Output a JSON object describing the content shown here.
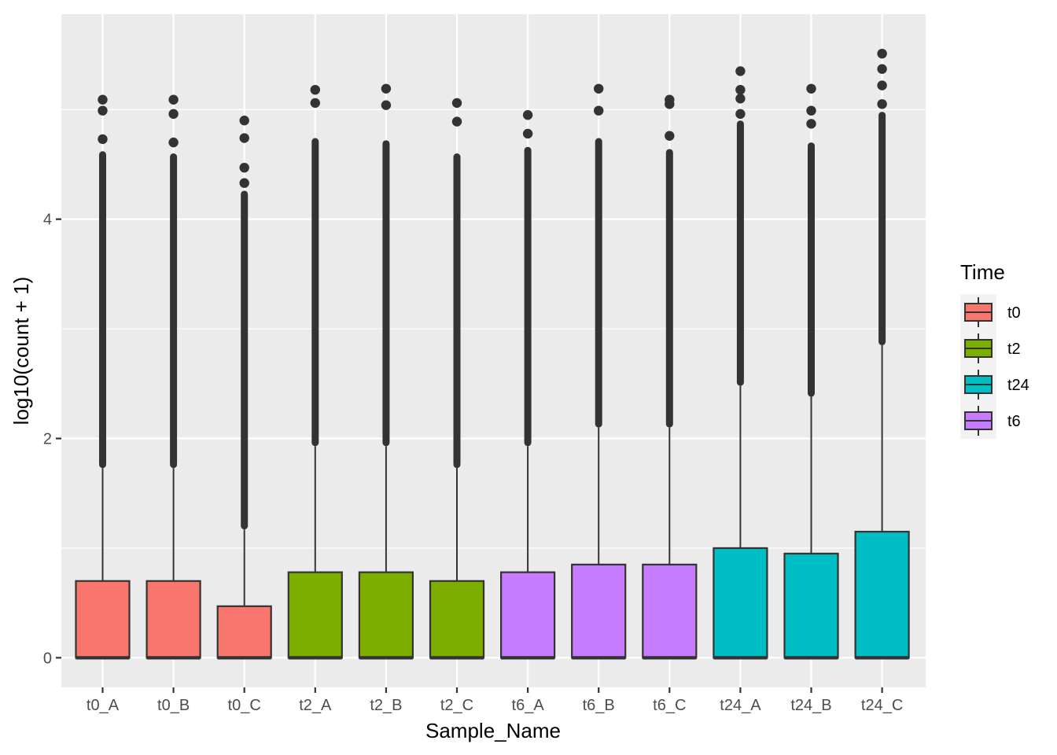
{
  "chart_data": {
    "type": "box",
    "xlabel": "Sample_Name",
    "ylabel": "log10(count + 1)",
    "ylim": [
      -0.27,
      5.87
    ],
    "yticks": [
      0,
      2,
      4
    ],
    "ytick_labels": [
      "0",
      "2",
      "4"
    ],
    "grid": true,
    "legend": {
      "title": "Time",
      "position": "right",
      "entries": [
        {
          "label": "t0",
          "color": "#F8766D"
        },
        {
          "label": "t2",
          "color": "#7CAE00"
        },
        {
          "label": "t24",
          "color": "#00BFC4"
        },
        {
          "label": "t6",
          "color": "#C77CFF"
        }
      ]
    },
    "categories": [
      "t0_A",
      "t0_B",
      "t0_C",
      "t2_A",
      "t2_B",
      "t2_C",
      "t6_A",
      "t6_B",
      "t6_C",
      "t24_A",
      "t24_B",
      "t24_C"
    ],
    "boxes": [
      {
        "name": "t0_A",
        "group": "t0",
        "min": 0,
        "q1": 0,
        "median": 0,
        "q3": 0.7,
        "whisker_high": 1.73,
        "dense_outliers_top": 4.62,
        "outliers": [
          4.73,
          4.99,
          5.09
        ]
      },
      {
        "name": "t0_B",
        "group": "t0",
        "min": 0,
        "q1": 0,
        "median": 0,
        "q3": 0.7,
        "whisker_high": 1.73,
        "dense_outliers_top": 4.6,
        "outliers": [
          4.7,
          4.96,
          5.09
        ]
      },
      {
        "name": "t0_C",
        "group": "t0",
        "min": 0,
        "q1": 0,
        "median": 0,
        "q3": 0.47,
        "whisker_high": 1.17,
        "dense_outliers_top": 4.26,
        "outliers": [
          4.33,
          4.47,
          4.74,
          4.9
        ]
      },
      {
        "name": "t2_A",
        "group": "t2",
        "min": 0,
        "q1": 0,
        "median": 0,
        "q3": 0.78,
        "whisker_high": 1.93,
        "dense_outliers_top": 4.74,
        "outliers": [
          5.06,
          5.18
        ]
      },
      {
        "name": "t2_B",
        "group": "t2",
        "min": 0,
        "q1": 0,
        "median": 0,
        "q3": 0.78,
        "whisker_high": 1.93,
        "dense_outliers_top": 4.72,
        "outliers": [
          5.04,
          5.19
        ]
      },
      {
        "name": "t2_C",
        "group": "t2",
        "min": 0,
        "q1": 0,
        "median": 0,
        "q3": 0.7,
        "whisker_high": 1.73,
        "dense_outliers_top": 4.6,
        "outliers": [
          4.89,
          5.06
        ]
      },
      {
        "name": "t6_A",
        "group": "t6",
        "min": 0,
        "q1": 0,
        "median": 0,
        "q3": 0.78,
        "whisker_high": 1.93,
        "dense_outliers_top": 4.66,
        "outliers": [
          4.78,
          4.95
        ]
      },
      {
        "name": "t6_B",
        "group": "t6",
        "min": 0,
        "q1": 0,
        "median": 0,
        "q3": 0.85,
        "whisker_high": 2.1,
        "dense_outliers_top": 4.74,
        "outliers": [
          4.99,
          5.19
        ]
      },
      {
        "name": "t6_C",
        "group": "t6",
        "min": 0,
        "q1": 0,
        "median": 0,
        "q3": 0.85,
        "whisker_high": 2.1,
        "dense_outliers_top": 4.64,
        "outliers": [
          4.76,
          5.05,
          5.09
        ]
      },
      {
        "name": "t24_A",
        "group": "t24",
        "min": 0,
        "q1": 0,
        "median": 0,
        "q3": 1.0,
        "whisker_high": 2.48,
        "dense_outliers_top": 4.9,
        "outliers": [
          4.96,
          5.1,
          5.18,
          5.35
        ]
      },
      {
        "name": "t24_B",
        "group": "t24",
        "min": 0,
        "q1": 0,
        "median": 0,
        "q3": 0.95,
        "whisker_high": 2.38,
        "dense_outliers_top": 4.7,
        "outliers": [
          4.87,
          4.99,
          5.19
        ]
      },
      {
        "name": "t24_C",
        "group": "t24",
        "min": 0,
        "q1": 0,
        "median": 0,
        "q3": 1.15,
        "whisker_high": 2.85,
        "dense_outliers_top": 4.98,
        "outliers": [
          5.05,
          5.22,
          5.37,
          5.51
        ]
      }
    ]
  }
}
